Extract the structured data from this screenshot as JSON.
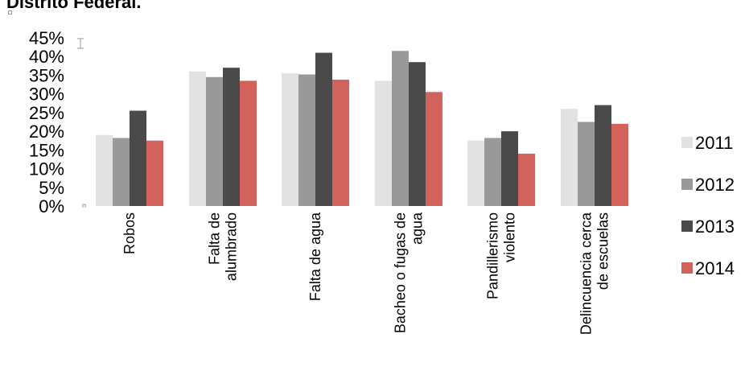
{
  "page": {
    "title": "Distrito Federal."
  },
  "colors": {
    "2011": "#e2e2e2",
    "2012": "#999999",
    "2013": "#4a4a4a",
    "2014": "#d1625c"
  },
  "chart_data": {
    "type": "bar",
    "title": "Distrito Federal.",
    "xlabel": "",
    "ylabel": "",
    "ylim": [
      0,
      45
    ],
    "yticks": [
      "45%",
      "40%",
      "35%",
      "30%",
      "25%",
      "20%",
      "15%",
      "10%",
      "5%",
      "0%"
    ],
    "grid": false,
    "legend_position": "right",
    "categories": [
      [
        "Robos"
      ],
      [
        "Falta de",
        "alumbrado"
      ],
      [
        "Falta de agua"
      ],
      [
        "Bacheo o fugas de",
        "agua"
      ],
      [
        "Pandillerismo",
        "violento"
      ],
      [
        "Delincuencia cerca",
        "de escuelas"
      ]
    ],
    "series": [
      {
        "name": "2011",
        "values": [
          19.0,
          36.0,
          35.5,
          33.5,
          17.5,
          26.0
        ]
      },
      {
        "name": "2012",
        "values": [
          18.2,
          34.5,
          35.2,
          41.5,
          18.2,
          22.5
        ]
      },
      {
        "name": "2013",
        "values": [
          25.5,
          37.0,
          41.0,
          38.5,
          20.0,
          27.0
        ]
      },
      {
        "name": "2014",
        "values": [
          17.5,
          33.5,
          33.8,
          30.5,
          14.0,
          22.0
        ]
      }
    ]
  }
}
